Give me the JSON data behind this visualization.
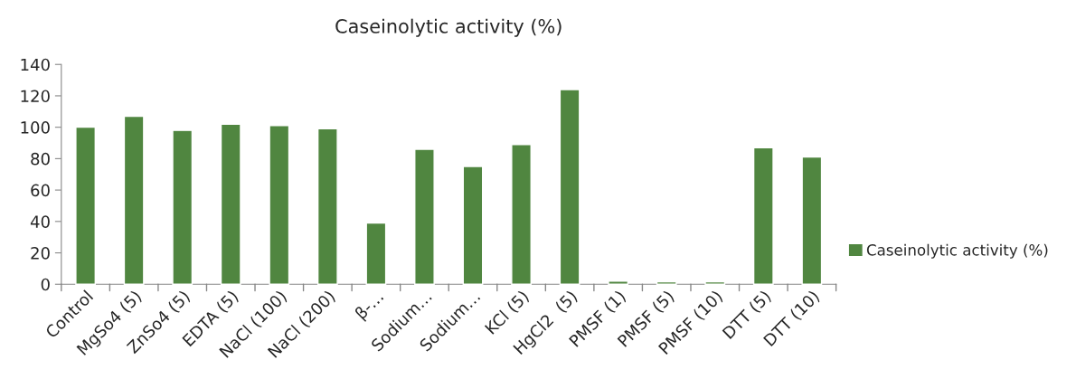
{
  "chart_data": {
    "type": "bar",
    "title": "Caseinolytic activity (%)",
    "categories": [
      "Control",
      "MgSo4 (5)",
      "ZnSo4 (5)",
      "EDTA (5)",
      "NaCl (100)",
      "NaCl (200)",
      "β-…",
      "Sodium…",
      "Sodium…",
      "KCl (5)",
      "HgCl2  (5)",
      "PMSF (1)",
      "PMSF (5)",
      "PMSF (10)",
      "DTT (5)",
      "DTT (10)"
    ],
    "series": [
      {
        "name": "Caseinolytic activity (%)",
        "color": "#508640",
        "values": [
          100,
          107,
          98,
          102,
          101,
          99,
          39,
          86,
          75,
          89,
          124,
          2,
          1.5,
          1.5,
          87,
          81
        ]
      }
    ],
    "ylim": [
      0,
      140
    ],
    "yticks": [
      0,
      20,
      40,
      60,
      80,
      100,
      120,
      140
    ],
    "grid": false,
    "legend": "right"
  }
}
